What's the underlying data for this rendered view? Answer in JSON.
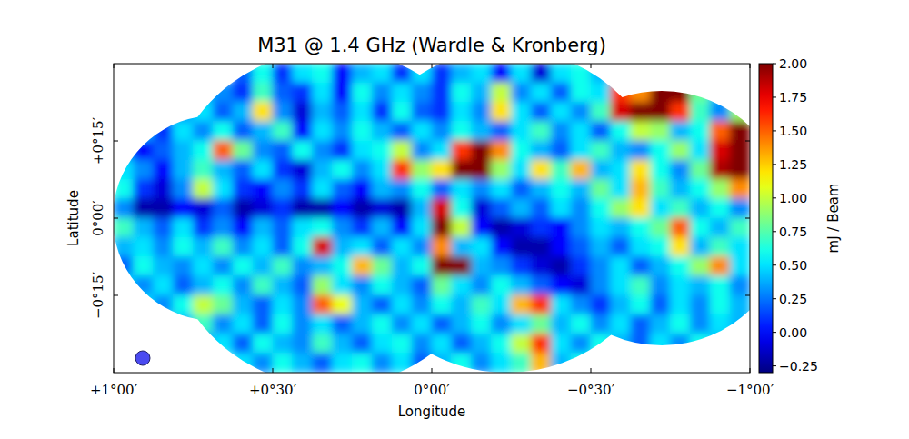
{
  "chart_data": {
    "type": "heatmap",
    "title": "M31 @ 1.4 GHz (Wardle & Kronberg)",
    "x_label": "Longitude",
    "y_label": "Latitude",
    "xlim": [
      1,
      -1
    ],
    "ylim": [
      -0.5,
      0.5
    ],
    "xticks": [
      {
        "value": 1,
        "label": "+1°00′"
      },
      {
        "value": 0.5,
        "label": "+0°30′"
      },
      {
        "value": 0,
        "label": "0°00′"
      },
      {
        "value": -0.5,
        "label": "−0°30′"
      },
      {
        "value": -1,
        "label": "−1°00′"
      }
    ],
    "yticks": [
      {
        "value": -0.25,
        "label": "−0°15′"
      },
      {
        "value": 0,
        "label": "0°00′"
      },
      {
        "value": 0.25,
        "label": "+0°15′"
      }
    ],
    "colorbar_label": "mJ / Beam",
    "colorbar_range": [
      -0.3,
      2.0
    ],
    "colorbar_ticks": [
      {
        "value": -0.25,
        "label": "−0.25"
      },
      {
        "value": 0,
        "label": "0.00"
      },
      {
        "value": 0.25,
        "label": "0.25"
      },
      {
        "value": 0.5,
        "label": "0.50"
      },
      {
        "value": 0.75,
        "label": "0.75"
      },
      {
        "value": 1,
        "label": "1.00"
      },
      {
        "value": 1.25,
        "label": "1.25"
      },
      {
        "value": 1.5,
        "label": "1.50"
      },
      {
        "value": 1.75,
        "label": "1.75"
      },
      {
        "value": 2,
        "label": "2.00"
      }
    ],
    "x": [
      0.96875,
      0.90625,
      0.84375,
      0.78125,
      0.71875,
      0.65625,
      0.59375,
      0.53125,
      0.46875,
      0.40625,
      0.34375,
      0.28125,
      0.21875,
      0.15625,
      0.09375,
      0.03125,
      -0.03125,
      -0.09375,
      -0.15625,
      -0.21875,
      -0.28125,
      -0.34375,
      -0.40625,
      -0.46875,
      -0.53125,
      -0.59375,
      -0.65625,
      -0.71875,
      -0.78125,
      -0.84375,
      -0.90625,
      -0.96875
    ],
    "y": [
      0.46875,
      0.40625,
      0.34375,
      0.28125,
      0.21875,
      0.15625,
      0.09375,
      0.03125,
      -0.03125,
      -0.09375,
      -0.15625,
      -0.21875,
      -0.28125,
      -0.34375,
      -0.40625,
      -0.46875
    ],
    "values": [
      [
        null,
        null,
        null,
        null,
        null,
        null,
        0.2,
        0.6,
        0.1,
        0.5,
        0.6,
        0.0,
        0.4,
        0.5,
        0.1,
        0.5,
        0.1,
        0.4,
        0.5,
        0.0,
        0.5,
        -0.1,
        0.5,
        0.6,
        0.4,
        null,
        null,
        null,
        null,
        null,
        null,
        null
      ],
      [
        null,
        null,
        null,
        null,
        0.4,
        0.3,
        0.1,
        0.7,
        0.2,
        0.1,
        0.5,
        0.0,
        0.6,
        0.3,
        0.5,
        0.3,
        0.1,
        0.6,
        0.4,
        1.0,
        0.3,
        0.5,
        0.2,
        0.6,
        0.5,
        1.6,
        1.4,
        2.2,
        2.0,
        0.8,
        0.4,
        null
      ],
      [
        null,
        null,
        null,
        0.3,
        0.5,
        0.2,
        0.4,
        1.2,
        0.3,
        -0.1,
        0.4,
        0.2,
        0.5,
        0.1,
        0.6,
        0.2,
        0.1,
        0.5,
        0.3,
        1.2,
        0.5,
        0.2,
        0.5,
        0.3,
        0.7,
        1.8,
        2.0,
        2.3,
        1.6,
        0.7,
        0.3,
        0.9
      ],
      [
        null,
        0.4,
        0.1,
        0.5,
        0.3,
        0.6,
        0.2,
        0.4,
        0.7,
        0.0,
        0.5,
        0.3,
        0.6,
        0.4,
        0.2,
        0.5,
        0.3,
        0.6,
        0.4,
        0.2,
        0.5,
        0.7,
        0.3,
        0.5,
        0.2,
        0.6,
        1.0,
        0.9,
        0.4,
        0.6,
        1.5,
        2.3
      ],
      [
        0.3,
        0.0,
        0.2,
        0.4,
        0.6,
        1.5,
        0.8,
        0.3,
        0.2,
        0.6,
        0.3,
        0.1,
        0.5,
        0.6,
        1.0,
        0.3,
        0.5,
        1.6,
        2.0,
        1.4,
        0.6,
        0.4,
        0.2,
        0.5,
        0.7,
        0.4,
        0.3,
        0.6,
        0.9,
        0.5,
        1.8,
        2.4
      ],
      [
        0.5,
        0.3,
        0.0,
        0.4,
        0.7,
        0.4,
        0.2,
        0.5,
        0.1,
        -0.1,
        0.4,
        0.6,
        0.3,
        0.5,
        1.6,
        0.9,
        1.2,
        2.4,
        2.3,
        0.9,
        0.5,
        1.2,
        0.7,
        1.3,
        0.4,
        0.5,
        1.2,
        0.6,
        0.3,
        0.8,
        1.9,
        2.2
      ],
      [
        0.6,
        0.1,
        -0.1,
        0.3,
        1.0,
        0.5,
        0.1,
        0.0,
        0.3,
        0.1,
        0.5,
        0.2,
        0.0,
        0.4,
        0.3,
        0.6,
        0.2,
        0.5,
        0.3,
        0.5,
        0.2,
        0.4,
        0.6,
        0.4,
        0.8,
        0.5,
        1.3,
        0.7,
        0.4,
        0.6,
        0.9,
        1.4
      ],
      [
        0.3,
        -0.2,
        -0.2,
        0.0,
        -0.1,
        0.2,
        -0.2,
        -0.1,
        0.1,
        -0.2,
        -0.2,
        0.0,
        -0.2,
        -0.1,
        -0.2,
        0.4,
        1.8,
        0.6,
        -0.1,
        0.2,
        0.4,
        0.2,
        0.5,
        0.3,
        0.6,
        0.9,
        1.2,
        0.5,
        0.7,
        0.4,
        0.6,
        0.3
      ],
      [
        0.7,
        0.4,
        0.2,
        0.5,
        0.1,
        0.3,
        0.0,
        0.4,
        0.2,
        0.5,
        0.6,
        0.3,
        0.1,
        0.4,
        0.0,
        0.5,
        2.4,
        1.0,
        0.0,
        -0.2,
        -0.1,
        0.1,
        0.0,
        0.3,
        0.5,
        0.4,
        0.6,
        0.8,
        1.5,
        0.6,
        0.4,
        0.7
      ],
      [
        0.4,
        0.5,
        0.3,
        0.6,
        0.4,
        0.7,
        0.3,
        0.5,
        0.2,
        0.6,
        1.8,
        0.4,
        0.5,
        0.2,
        0.5,
        0.3,
        1.4,
        0.4,
        0.5,
        0.0,
        -0.2,
        -0.2,
        0.0,
        0.2,
        0.4,
        0.2,
        0.5,
        0.6,
        1.2,
        0.4,
        0.7,
        0.5
      ],
      [
        0.2,
        0.6,
        0.4,
        0.3,
        0.5,
        0.3,
        0.6,
        0.4,
        0.7,
        0.3,
        0.4,
        0.6,
        1.3,
        0.8,
        0.4,
        0.6,
        2.4,
        2.0,
        0.4,
        0.3,
        0.1,
        -0.1,
        -0.2,
        0.1,
        0.3,
        0.5,
        0.2,
        0.4,
        0.6,
        0.9,
        1.4,
        0.5
      ],
      [
        0.5,
        0.3,
        0.5,
        0.2,
        0.4,
        0.6,
        0.3,
        0.7,
        0.4,
        0.2,
        0.9,
        0.5,
        0.3,
        0.6,
        0.4,
        0.2,
        0.8,
        0.5,
        0.3,
        0.6,
        0.4,
        0.2,
        0.0,
        -0.1,
        0.3,
        0.5,
        0.7,
        0.3,
        0.5,
        0.4,
        0.6,
        0.3
      ],
      [
        null,
        0.5,
        0.3,
        0.6,
        1.0,
        0.8,
        0.4,
        0.2,
        0.5,
        0.3,
        1.5,
        1.1,
        0.4,
        0.2,
        0.5,
        0.3,
        0.6,
        0.4,
        0.7,
        0.5,
        1.3,
        1.6,
        0.5,
        0.3,
        0.1,
        0.4,
        0.6,
        0.2,
        0.5,
        0.3,
        0.6,
        0.4
      ],
      [
        null,
        null,
        null,
        0.4,
        0.7,
        0.3,
        0.5,
        0.2,
        0.6,
        0.3,
        0.5,
        0.2,
        0.4,
        0.6,
        0.3,
        0.5,
        0.2,
        0.4,
        0.6,
        0.3,
        0.5,
        0.8,
        0.4,
        0.6,
        0.3,
        0.5,
        0.2,
        0.4,
        0.6,
        0.3,
        0.5,
        0.4
      ],
      [
        null,
        null,
        null,
        null,
        0.3,
        0.5,
        0.2,
        0.6,
        0.4,
        0.3,
        0.7,
        0.4,
        0.2,
        0.5,
        0.6,
        0.3,
        0.5,
        0.2,
        0.4,
        0.6,
        1.0,
        1.6,
        0.5,
        0.3,
        0.6,
        0.4,
        0.2,
        0.5,
        0.3,
        0.6,
        0.4,
        null
      ],
      [
        null,
        null,
        null,
        null,
        null,
        null,
        0.5,
        0.3,
        0.6,
        0.4,
        0.2,
        0.5,
        0.6,
        0.3,
        0.5,
        0.2,
        0.4,
        0.6,
        0.3,
        0.5,
        0.7,
        1.3,
        0.4,
        0.6,
        null,
        null,
        null,
        null,
        null,
        null,
        null,
        null
      ]
    ]
  }
}
